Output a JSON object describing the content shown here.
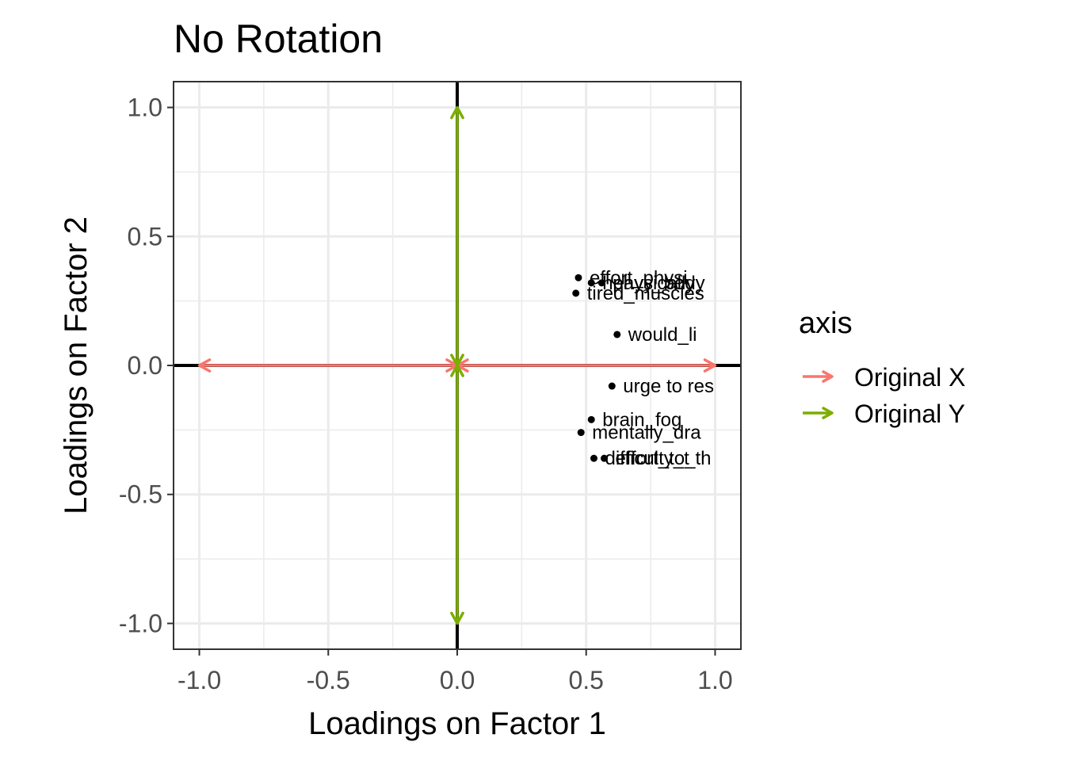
{
  "chart_data": {
    "type": "scatter",
    "title": "No Rotation",
    "xlabel": "Loadings on Factor 1",
    "ylabel": "Loadings on Factor 2",
    "xlim": [
      -1.1,
      1.1
    ],
    "ylim": [
      -1.1,
      1.1
    ],
    "xticks": [
      -1.0,
      -0.5,
      0.0,
      0.5,
      1.0
    ],
    "yticks": [
      -1.0,
      -0.5,
      0.0,
      0.5,
      1.0
    ],
    "xtick_labels": [
      "-1.0",
      "-0.5",
      "0.0",
      "0.5",
      "1.0"
    ],
    "ytick_labels": [
      "-1.0",
      "-0.5",
      "0.0",
      "0.5",
      "1.0"
    ],
    "grid": true,
    "points": [
      {
        "label": "effort_physi",
        "x": 0.47,
        "y": 0.34
      },
      {
        "label": "heavy_body",
        "x": 0.52,
        "y": 0.32
      },
      {
        "label": "physically",
        "x": 0.56,
        "y": 0.32
      },
      {
        "label": "tired_muscles",
        "x": 0.46,
        "y": 0.28
      },
      {
        "label": "would_li",
        "x": 0.62,
        "y": 0.12
      },
      {
        "label": "urge to res",
        "x": 0.6,
        "y": -0.08
      },
      {
        "label": "brain_fog",
        "x": 0.52,
        "y": -0.21
      },
      {
        "label": "mentally_dra",
        "x": 0.48,
        "y": -0.26
      },
      {
        "label": "difficulty_t",
        "x": 0.53,
        "y": -0.36
      },
      {
        "label": "effort_to_th",
        "x": 0.57,
        "y": -0.36
      }
    ],
    "arrows": [
      {
        "series": "Original X",
        "from": [
          0,
          0
        ],
        "to": [
          1,
          0
        ],
        "color": "#F8766D"
      },
      {
        "series": "Original X",
        "from": [
          0,
          0
        ],
        "to": [
          -1,
          0
        ],
        "color": "#F8766D"
      },
      {
        "series": "Original Y",
        "from": [
          0,
          0
        ],
        "to": [
          0,
          1
        ],
        "color": "#7CAE00"
      },
      {
        "series": "Original Y",
        "from": [
          0,
          0
        ],
        "to": [
          0,
          -1
        ],
        "color": "#7CAE00"
      }
    ],
    "legend": {
      "title": "axis",
      "position": "right",
      "entries": [
        {
          "name": "Original X",
          "color": "#F8766D"
        },
        {
          "name": "Original Y",
          "color": "#7CAE00"
        }
      ]
    }
  }
}
